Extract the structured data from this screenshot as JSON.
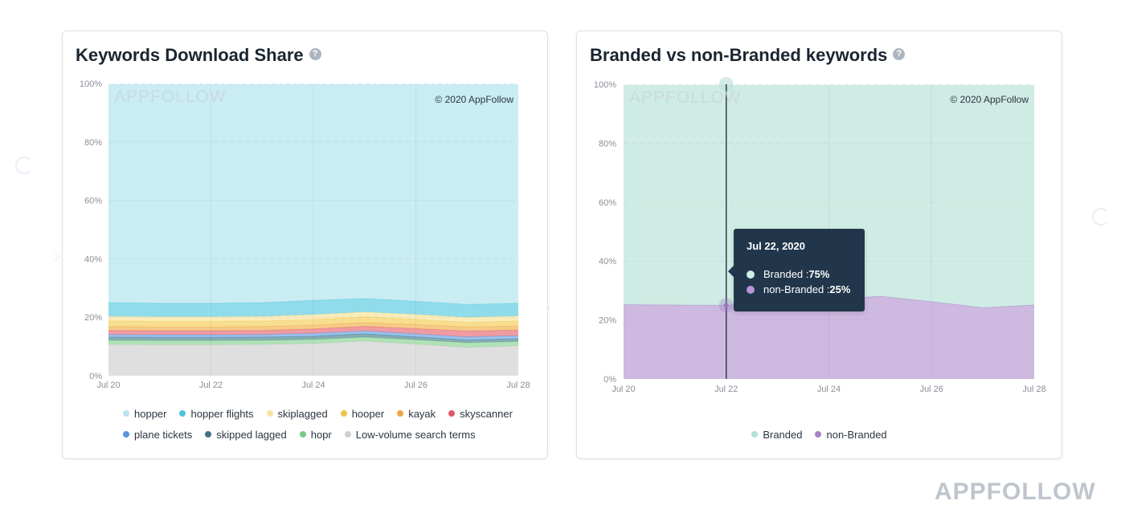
{
  "page": {
    "brand_watermark": "APPFOLLOW"
  },
  "cards": [
    {
      "title": "Keywords Download Share",
      "help_icon": "question-circle-icon",
      "help_glyph": "?",
      "plot_watermark": "APPFOLLOW",
      "copyright": "© 2020 AppFollow"
    },
    {
      "title": "Branded vs non-Branded keywords",
      "help_icon": "question-circle-icon",
      "help_glyph": "?",
      "plot_watermark": "APPFOLLOW",
      "copyright": "© 2020 AppFollow",
      "tooltip": {
        "date": "Jul 22, 2020",
        "rows": [
          {
            "label": "Branded : ",
            "value": "75%",
            "color": "#cdeee6"
          },
          {
            "label": "non-Branded : ",
            "value": "25%",
            "color": "#b994d6"
          }
        ]
      }
    }
  ],
  "chart_data": [
    {
      "type": "area",
      "stacked": true,
      "stack_order": "last series at bottom",
      "title": "Keywords Download Share",
      "xlabel": "",
      "ylabel": "",
      "ylim": [
        0,
        100
      ],
      "grid": true,
      "legend_position": "bottom",
      "x": [
        "Jul 20",
        "Jul 21",
        "Jul 22",
        "Jul 23",
        "Jul 24",
        "Jul 25",
        "Jul 26",
        "Jul 27",
        "Jul 28"
      ],
      "xticks": [
        "Jul 20",
        "Jul 22",
        "Jul 24",
        "Jul 26",
        "Jul 28"
      ],
      "yticks": {
        "values": [
          0,
          20,
          40,
          60,
          80,
          100
        ],
        "labels": [
          "0%",
          "20%",
          "40%",
          "60%",
          "80%",
          "100%"
        ]
      },
      "series": [
        {
          "name": "hopper",
          "color": "#a9e0ec",
          "dot": "#b9e4ee",
          "values": [
            75.0,
            75.2,
            75.2,
            75.0,
            74.2,
            73.6,
            74.5,
            75.6,
            75.2
          ]
        },
        {
          "name": "hopper flights",
          "color": "#4cc6de",
          "dot": "#4fc3dc",
          "values": [
            4.7,
            4.6,
            4.6,
            4.7,
            4.9,
            4.6,
            4.5,
            4.4,
            4.4
          ]
        },
        {
          "name": "skiplagged",
          "color": "#f7e08f",
          "dot": "#f6e3a0",
          "values": [
            1.6,
            1.6,
            1.6,
            1.6,
            1.7,
            1.7,
            1.7,
            1.7,
            1.7
          ]
        },
        {
          "name": "hooper",
          "color": "#f2c94c",
          "dot": "#efc24d",
          "values": [
            1.9,
            1.9,
            1.9,
            1.9,
            1.9,
            1.9,
            1.8,
            1.6,
            1.7
          ]
        },
        {
          "name": "kayak",
          "color": "#f0a941",
          "dot": "#eea548",
          "values": [
            1.3,
            1.3,
            1.3,
            1.3,
            1.3,
            1.3,
            1.4,
            1.4,
            1.4
          ]
        },
        {
          "name": "skyscanner",
          "color": "#e35d6a",
          "dot": "#e05a68",
          "values": [
            1.4,
            1.4,
            1.4,
            1.4,
            1.5,
            1.6,
            1.8,
            2.0,
            1.9
          ]
        },
        {
          "name": "plane tickets",
          "color": "#5b9be0",
          "dot": "#5a93d9",
          "values": [
            0.9,
            0.9,
            0.9,
            0.9,
            1.0,
            1.0,
            1.0,
            1.1,
            1.1
          ]
        },
        {
          "name": "skipped lagged",
          "color": "#3b7a87",
          "dot": "#3f7582",
          "values": [
            1.1,
            1.1,
            1.1,
            1.1,
            1.1,
            1.1,
            1.0,
            0.9,
            0.9
          ]
        },
        {
          "name": "hopr",
          "color": "#7fcf8a",
          "dot": "#7cc886",
          "values": [
            1.4,
            1.4,
            1.4,
            1.4,
            1.4,
            1.4,
            1.5,
            1.6,
            1.5
          ]
        },
        {
          "name": "Low-volume search terms",
          "color": "#cccccc",
          "dot": "#d0d0d0",
          "values": [
            10.7,
            10.6,
            10.6,
            10.7,
            11.0,
            11.8,
            10.8,
            9.7,
            10.2
          ]
        }
      ]
    },
    {
      "type": "area",
      "stacked": true,
      "stack_order": "last series at bottom",
      "title": "Branded vs non-Branded keywords",
      "xlabel": "",
      "ylabel": "",
      "ylim": [
        0,
        100
      ],
      "grid": true,
      "legend_position": "bottom",
      "hover_index": 2,
      "x": [
        "Jul 20",
        "Jul 21",
        "Jul 22",
        "Jul 23",
        "Jul 24",
        "Jul 25",
        "Jul 26",
        "Jul 27",
        "Jul 28"
      ],
      "xticks": [
        "Jul 20",
        "Jul 22",
        "Jul 24",
        "Jul 26",
        "Jul 28"
      ],
      "yticks": {
        "values": [
          0,
          20,
          40,
          60,
          80,
          100
        ],
        "labels": [
          "0%",
          "20%",
          "40%",
          "60%",
          "80%",
          "100%"
        ]
      },
      "series": [
        {
          "name": "Branded",
          "color": "#a8dccd",
          "dot": "#b3e0d4",
          "values": [
            74.8,
            74.9,
            75.0,
            74.1,
            73.2,
            71.9,
            73.8,
            75.8,
            74.9
          ]
        },
        {
          "name": "non-Branded",
          "color": "#a67fc8",
          "dot": "#a882c6",
          "values": [
            25.2,
            25.1,
            25.0,
            25.9,
            26.8,
            28.1,
            26.2,
            24.2,
            25.1
          ]
        }
      ]
    }
  ]
}
